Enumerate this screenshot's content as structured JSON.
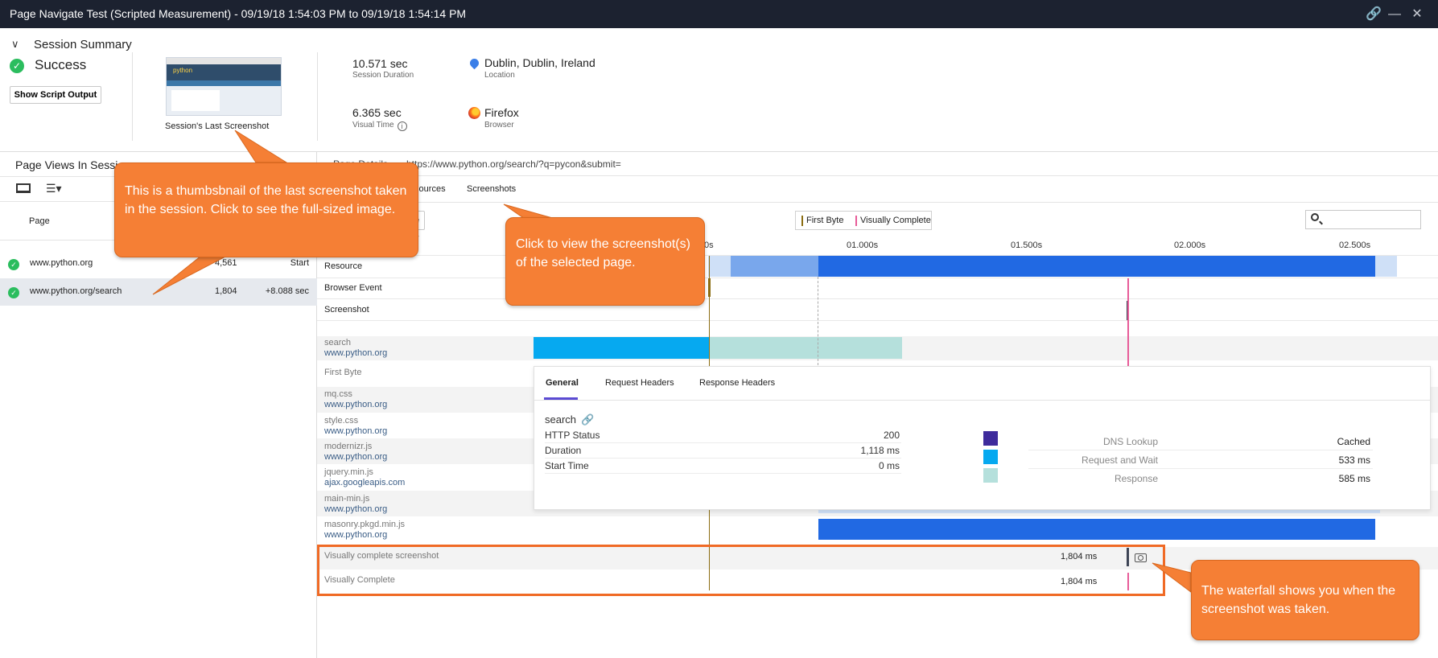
{
  "window": {
    "title": "Page Navigate Test (Scripted Measurement) - 09/19/18 1:54:03 PM to 09/19/18 1:54:14 PM"
  },
  "summary": {
    "title": "Session Summary",
    "status": "Success",
    "show_script_output": "Show Script Output",
    "thumbnail_caption": "Session's Last Screenshot",
    "thumbnail_logo": "python",
    "session_duration_value": "10.571 sec",
    "session_duration_label": "Session Duration",
    "visual_time_value": "6.365 sec",
    "visual_time_label": "Visual Time",
    "location_value": "Dublin, Dublin, Ireland",
    "location_label": "Location",
    "browser_value": "Firefox",
    "browser_label": "Browser"
  },
  "left_panel": {
    "title": "Page Views In Sessio",
    "col_page": "Page",
    "rows": [
      {
        "url": "www.python.org",
        "size": "4,561",
        "start": "Start"
      },
      {
        "url": "www.python.org/search",
        "size": "1,804",
        "start": "+8.088 sec"
      }
    ]
  },
  "detail": {
    "label": "Page Details",
    "url": "https://www.python.org/search/?q=pycon&submit=",
    "tabs": [
      "Resources",
      "Screenshots"
    ],
    "dropdown_label": "e",
    "legend_first_byte": "First Byte",
    "legend_visually_complete": "Visually Complete",
    "axis_ticks": [
      "0s",
      "01.000s",
      "01.500s",
      "02.000s",
      "02.500s"
    ],
    "lanes": [
      "Resource",
      "Browser Event",
      "Screenshot"
    ],
    "resources": [
      {
        "name": "search",
        "host": "www.python.org"
      },
      {
        "name": "First Byte",
        "host": ""
      },
      {
        "name": "mq.css",
        "host": "www.python.org"
      },
      {
        "name": "style.css",
        "host": "www.python.org"
      },
      {
        "name": "modernizr.js",
        "host": "www.python.org"
      },
      {
        "name": "jquery.min.js",
        "host": "ajax.googleapis.com"
      },
      {
        "name": "main-min.js",
        "host": "www.python.org"
      },
      {
        "name": "masonry.pkgd.min.js",
        "host": "www.python.org"
      }
    ],
    "vc_screenshot": {
      "name": "Visually complete screenshot",
      "time": "1,804 ms"
    },
    "visually_complete": {
      "name": "Visually Complete",
      "time": "1,804 ms"
    }
  },
  "popup": {
    "tabs": [
      "General",
      "Request Headers",
      "Response Headers"
    ],
    "resource_name": "search",
    "fields": [
      {
        "k": "HTTP Status",
        "v": "200"
      },
      {
        "k": "Duration",
        "v": "1,118 ms"
      },
      {
        "k": "Start Time",
        "v": "0 ms"
      }
    ],
    "timings": [
      {
        "k": "DNS Lookup",
        "v": "Cached",
        "color": "#3e2b9c"
      },
      {
        "k": "Request and Wait",
        "v": "533 ms",
        "color": "#06a9f0"
      },
      {
        "k": "Response",
        "v": "585 ms",
        "color": "#b5e0dc"
      }
    ]
  },
  "callouts": {
    "thumbnail": "This is a thumbsbnail of the last screenshot taken in the session. Click to see the full-sized image.",
    "screenshots": "Click to view the screenshot(s) of the selected page.",
    "waterfall": "The waterfall shows you when the screenshot was taken."
  },
  "colors": {
    "titlebar": "#1c2230",
    "success": "#2bbd5e",
    "callout": "#f57f35",
    "resource_bar": "#2169e3",
    "first_byte": "#8b6d12",
    "visually_complete": "#e75b98"
  }
}
